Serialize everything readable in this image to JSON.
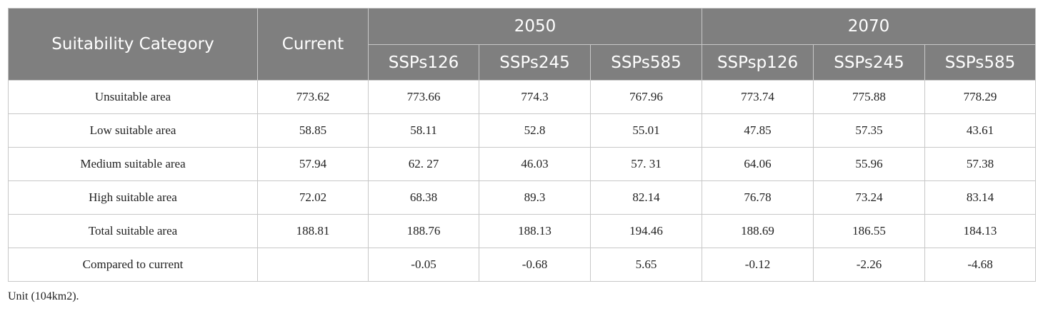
{
  "table": {
    "header": {
      "first": "Suitability Category",
      "current": "Current",
      "groups": [
        {
          "label": "2050",
          "columns": [
            "SSPs126",
            "SSPs245",
            "SSPs585"
          ]
        },
        {
          "label": "2070",
          "columns": [
            "SSPsp126",
            "SSPs245",
            "SSPs585"
          ]
        }
      ]
    },
    "rows": [
      [
        "Unsuitable area",
        "773.62",
        "773.66",
        "774.3",
        "767.96",
        "773.74",
        "775.88",
        "778.29"
      ],
      [
        "Low suitable area",
        "58.85",
        "58.11",
        "52.8",
        "55.01",
        "47.85",
        "57.35",
        "43.61"
      ],
      [
        "Medium suitable area",
        "57.94",
        "62. 27",
        "46.03",
        "57. 31",
        "64.06",
        "55.96",
        "57.38"
      ],
      [
        "High suitable area",
        "72.02",
        "68.38",
        "89.3",
        "82.14",
        "76.78",
        "73.24",
        "83.14"
      ],
      [
        "Total suitable area",
        "188.81",
        "188.76",
        "188.13",
        "194.46",
        "188.69",
        "186.55",
        "184.13"
      ],
      [
        "Compared to current",
        null,
        "-0.05",
        "-0.68",
        "5.65",
        "-0.12",
        "-2.26",
        "-4.68"
      ]
    ]
  },
  "footnote": "Unit (104km2)."
}
